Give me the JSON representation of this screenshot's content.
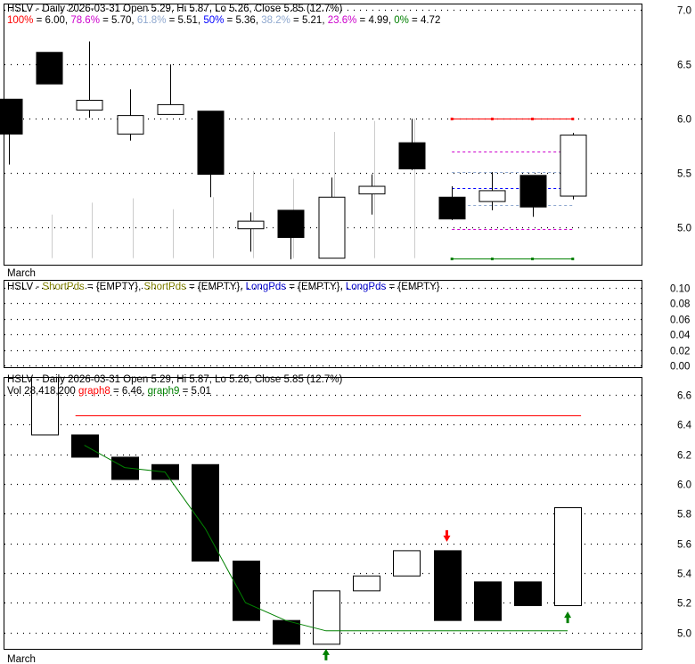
{
  "colors": {
    "frame": "#000000",
    "grid": "#000000",
    "fib_100": "#ff0000",
    "fib_786": "#cc00cc",
    "fib_618": "#8fa8cf",
    "fib_50": "#0000ff",
    "fib_382": "#8fa8cf",
    "fib_236": "#cc00cc",
    "fib_0": "#008000",
    "short_pds": "#808000",
    "long_pds": "#0000cc",
    "graph8": "#ff0000",
    "graph9": "#008000",
    "arrow_up": "#008000",
    "arrow_down": "#ff0000",
    "bar_fill_down": "#000000",
    "bar_fill_up": "#ffffff",
    "history_line": "#cccccc"
  },
  "panel1": {
    "header": "HSLV - Daily 2026-03-31 Open 5.29, Hi 5.87, Lo 5.26, Close 5.85 (12.7%)",
    "fib_items": [
      {
        "label": "100%",
        "sep": " = ",
        "value": "6.00",
        "color_key": "fib_100"
      },
      {
        "label": "78.6%",
        "sep": " = ",
        "value": "5.70",
        "color_key": "fib_786"
      },
      {
        "label": "61.8%",
        "sep": " = ",
        "value": "5.51",
        "color_key": "fib_618"
      },
      {
        "label": "50%",
        "sep": " = ",
        "value": "5.36",
        "color_key": "fib_50"
      },
      {
        "label": "38.2%",
        "sep": " = ",
        "value": "5.21",
        "color_key": "fib_382"
      },
      {
        "label": "23.6%",
        "sep": " = ",
        "value": "4.99",
        "color_key": "fib_236"
      },
      {
        "label": "0%",
        "sep": " = ",
        "value": "4.72",
        "color_key": "fib_0"
      }
    ],
    "month_label": "March",
    "y_ticks": [
      "5.0",
      "5.5",
      "6.0",
      "6.5",
      "7.0"
    ]
  },
  "panel2": {
    "header_items": [
      {
        "text": "HSLV - ",
        "color_key": "frame"
      },
      {
        "text": "ShortPds",
        "color_key": "short_pds"
      },
      {
        "text": " = {EMPTY}, ",
        "color_key": "frame"
      },
      {
        "text": "ShortPds",
        "color_key": "short_pds"
      },
      {
        "text": " = {EMPTY}, ",
        "color_key": "frame"
      },
      {
        "text": "LongPds",
        "color_key": "long_pds"
      },
      {
        "text": " = {EMPTY}, ",
        "color_key": "frame"
      },
      {
        "text": "LongPds",
        "color_key": "long_pds"
      },
      {
        "text": " = {EMPTY}",
        "color_key": "frame"
      }
    ],
    "y_ticks": [
      "0.00",
      "0.02",
      "0.04",
      "0.06",
      "0.08",
      "0.10"
    ]
  },
  "panel3": {
    "header": "HSLV - Daily 2026-03-31 Open 5.29, Hi 5.87, Lo 5.26, Close 5.85 (12.7%)",
    "line2": [
      {
        "text": "Vol 28,418,200 ",
        "color_key": "frame"
      },
      {
        "text": "graph8",
        "color_key": "graph8"
      },
      {
        "text": " = 6.46, ",
        "color_key": "frame"
      },
      {
        "text": "graph9",
        "color_key": "graph9"
      },
      {
        "text": " = 5.01",
        "color_key": "frame"
      }
    ],
    "month_label": "March",
    "y_ticks": [
      "5.0",
      "5.2",
      "5.4",
      "5.6",
      "5.8",
      "6.0",
      "6.2",
      "6.4",
      "6.6"
    ]
  },
  "chart_data": [
    {
      "type": "candlestick",
      "title": "HSLV - Daily 2026-03-31",
      "x_label": "March",
      "ylim": [
        4.66,
        7.05
      ],
      "grid": true,
      "history_bars": [
        {
          "high": 5.12,
          "low": 4.72
        },
        {
          "high": 5.23,
          "low": 4.72
        },
        {
          "high": 5.27,
          "low": 4.72
        },
        {
          "high": 5.17,
          "low": 4.72
        },
        {
          "high": 5.28,
          "low": 4.72
        },
        {
          "high": 5.52,
          "low": 4.72
        },
        {
          "high": 5.45,
          "low": 4.72
        },
        {
          "high": 5.88,
          "low": 4.72
        },
        {
          "high": 5.98,
          "low": 4.72
        },
        {
          "high": 6.0,
          "low": 4.72
        }
      ],
      "candles": [
        {
          "open": 6.18,
          "high": 6.18,
          "low": 5.58,
          "close": 5.86
        },
        {
          "open": 6.61,
          "high": 6.61,
          "low": 6.32,
          "close": 6.32
        },
        {
          "open": 6.08,
          "high": 6.71,
          "low": 6.01,
          "close": 6.17
        },
        {
          "open": 5.86,
          "high": 6.27,
          "low": 5.8,
          "close": 6.03
        },
        {
          "open": 6.04,
          "high": 6.5,
          "low": 6.04,
          "close": 6.13
        },
        {
          "open": 6.07,
          "high": 6.07,
          "low": 5.28,
          "close": 5.49
        },
        {
          "open": 4.99,
          "high": 5.14,
          "low": 4.78,
          "close": 5.06
        },
        {
          "open": 5.16,
          "high": 5.16,
          "low": 4.71,
          "close": 4.91
        },
        {
          "open": 4.72,
          "high": 5.46,
          "low": 4.72,
          "close": 5.28
        },
        {
          "open": 5.31,
          "high": 5.49,
          "low": 5.12,
          "close": 5.38
        },
        {
          "open": 5.78,
          "high": 6.0,
          "low": 5.53,
          "close": 5.54
        },
        {
          "open": 5.28,
          "high": 5.38,
          "low": 5.07,
          "close": 5.08
        },
        {
          "open": 5.24,
          "high": 5.51,
          "low": 5.16,
          "close": 5.34
        },
        {
          "open": 5.48,
          "high": 5.48,
          "low": 5.1,
          "close": 5.19
        },
        {
          "open": 5.29,
          "high": 5.87,
          "low": 5.26,
          "close": 5.85
        }
      ],
      "fib_levels": [
        {
          "label": "100%",
          "value": 6.0,
          "style": "dots",
          "color_key": "fib_100"
        },
        {
          "label": "78.6%",
          "value": 5.7,
          "style": "dash",
          "color_key": "fib_786"
        },
        {
          "label": "61.8%",
          "value": 5.51,
          "style": "dash",
          "color_key": "fib_618"
        },
        {
          "label": "50%",
          "value": 5.36,
          "style": "dash",
          "color_key": "fib_50"
        },
        {
          "label": "38.2%",
          "value": 5.21,
          "style": "dash",
          "color_key": "fib_382"
        },
        {
          "label": "23.6%",
          "value": 4.99,
          "style": "dash",
          "color_key": "fib_236"
        },
        {
          "label": "0%",
          "value": 4.72,
          "style": "dots",
          "color_key": "fib_0"
        }
      ],
      "fib_start_index": 11,
      "fib_end_index": 14
    },
    {
      "type": "line",
      "title": "ShortPds / LongPds",
      "series": [],
      "ylim": [
        0,
        0.1
      ]
    },
    {
      "type": "bar",
      "title": "HSLV - Daily 2026-03-31",
      "x_label": "March",
      "ylim": [
        4.92,
        6.69
      ],
      "boxes": [
        {
          "top": 6.78,
          "bottom": 6.33,
          "fill": "up"
        },
        {
          "top": 6.33,
          "bottom": 6.18,
          "fill": "down"
        },
        {
          "top": 6.18,
          "bottom": 6.03,
          "fill": "down"
        },
        {
          "top": 6.13,
          "bottom": 6.03,
          "fill": "down"
        },
        {
          "top": 6.13,
          "bottom": 5.48,
          "fill": "down"
        },
        {
          "top": 5.48,
          "bottom": 5.08,
          "fill": "down"
        },
        {
          "top": 5.08,
          "bottom": 4.92,
          "fill": "down"
        },
        {
          "top": 5.28,
          "bottom": 4.92,
          "fill": "up"
        },
        {
          "top": 5.38,
          "bottom": 5.28,
          "fill": "up"
        },
        {
          "top": 5.55,
          "bottom": 5.38,
          "fill": "up"
        },
        {
          "top": 5.55,
          "bottom": 5.08,
          "fill": "down"
        },
        {
          "top": 5.34,
          "bottom": 5.08,
          "fill": "down"
        },
        {
          "top": 5.34,
          "bottom": 5.18,
          "fill": "down"
        },
        {
          "top": 5.84,
          "bottom": 5.18,
          "fill": "up"
        }
      ],
      "graph8": {
        "value": 6.46,
        "start_index": 1,
        "end_index": 13
      },
      "graph9": {
        "points": [
          {
            "i": 1,
            "y": 6.26
          },
          {
            "i": 2,
            "y": 6.11
          },
          {
            "i": 3,
            "y": 6.08
          },
          {
            "i": 4,
            "y": 5.7
          },
          {
            "i": 5,
            "y": 5.2
          },
          {
            "i": 6,
            "y": 5.08
          },
          {
            "i": 7,
            "y": 5.01
          },
          {
            "i": 13,
            "y": 5.01
          }
        ]
      },
      "arrows": [
        {
          "i": 7,
          "dir": "up",
          "y": 4.89
        },
        {
          "i": 10,
          "dir": "down",
          "y": 5.61
        },
        {
          "i": 13,
          "dir": "up",
          "y": 5.14
        }
      ]
    }
  ]
}
